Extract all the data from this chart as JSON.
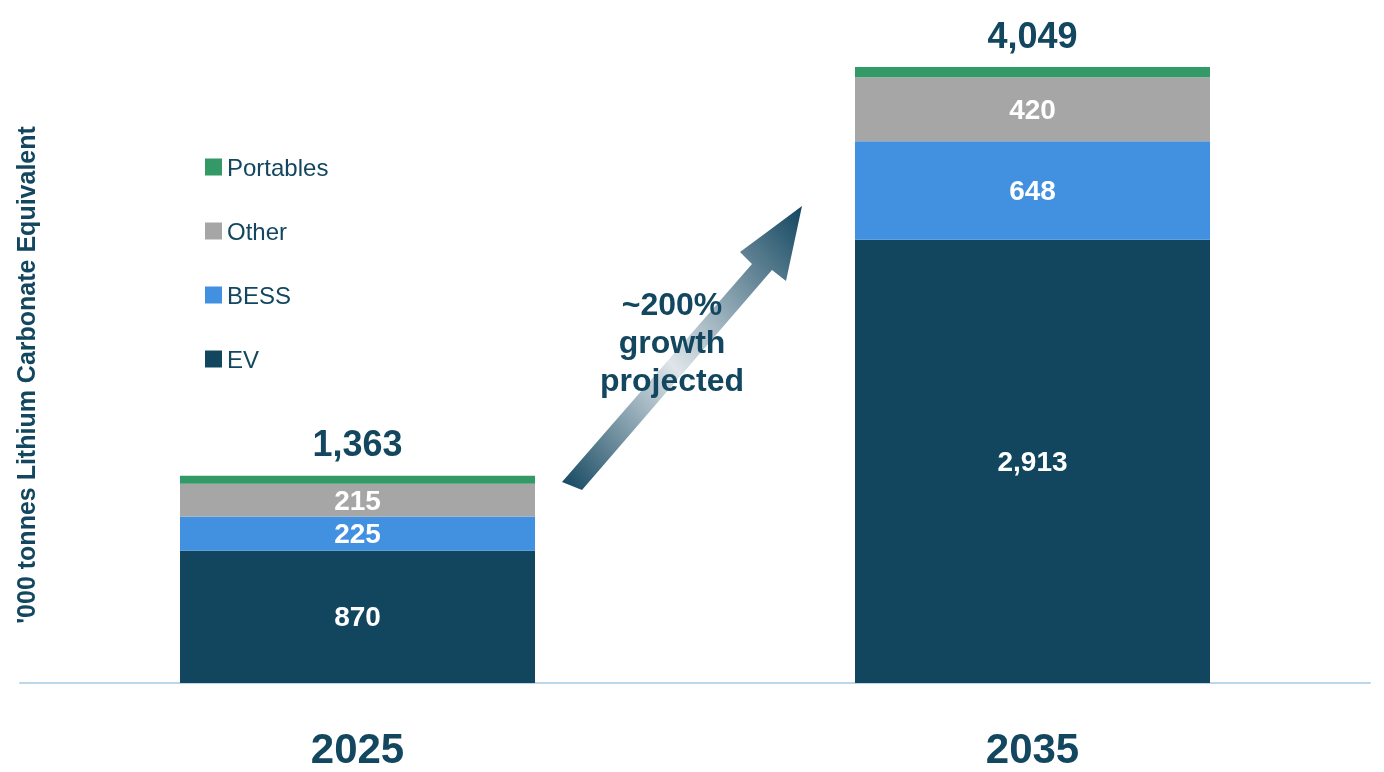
{
  "chart_data": {
    "type": "bar",
    "stacked": true,
    "ylabel": "'000 tonnes Lithium Carbonate Equivalent",
    "categories": [
      "2025",
      "2035"
    ],
    "series": [
      {
        "name": "EV",
        "color": "#12465f",
        "values": [
          870,
          2913
        ],
        "value_labels": [
          "870",
          "2,913"
        ]
      },
      {
        "name": "BESS",
        "color": "#4191e0",
        "values": [
          225,
          648
        ],
        "value_labels": [
          "225",
          "648"
        ]
      },
      {
        "name": "Other",
        "color": "#a6a6a6",
        "values": [
          215,
          420
        ],
        "value_labels": [
          "215",
          "420"
        ]
      },
      {
        "name": "Portables",
        "color": "#339966",
        "values": [
          53,
          68
        ],
        "value_labels": [
          null,
          null
        ]
      }
    ],
    "totals": [
      "1,363",
      "4,049"
    ],
    "legend": "left",
    "grid": false,
    "annotations": [
      "~200%\ngrowth\nprojected"
    ]
  }
}
